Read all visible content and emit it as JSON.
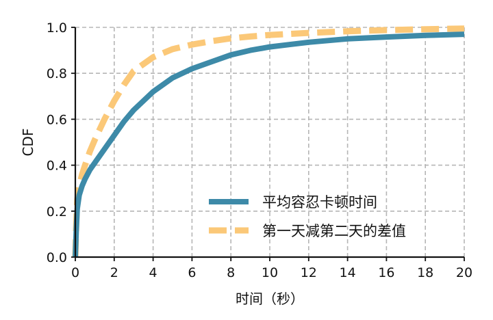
{
  "chart_data": {
    "type": "line",
    "xlabel": "时间（秒）",
    "ylabel": "CDF",
    "xlim": [
      0,
      20
    ],
    "ylim": [
      0,
      1.0
    ],
    "xticks": [
      0,
      2,
      4,
      6,
      8,
      10,
      12,
      14,
      16,
      18,
      20
    ],
    "xtick_labels": [
      "0",
      "2",
      "4",
      "6",
      "8",
      "10",
      "12",
      "14",
      "16",
      "18",
      "20"
    ],
    "yticks": [
      0,
      0.2,
      0.4,
      0.6,
      0.8,
      1.0
    ],
    "ytick_labels": [
      "0.0",
      "0.2",
      "0.4",
      "0.6",
      "0.8",
      "1.0"
    ],
    "grid": true,
    "legend_position": "lower-right",
    "series": [
      {
        "name": "平均容忍卡顿时间",
        "color": "#3d8aa8",
        "style": "solid",
        "x": [
          0.0,
          0.05,
          0.1,
          0.2,
          0.35,
          0.5,
          0.75,
          1.0,
          1.5,
          2.0,
          2.5,
          3.0,
          4.0,
          5.0,
          6.0,
          7.0,
          8.0,
          9.0,
          10.0,
          11.0,
          12.0,
          14.0,
          16.0,
          18.0,
          20.0
        ],
        "values": [
          0.0,
          0.12,
          0.21,
          0.27,
          0.31,
          0.34,
          0.38,
          0.41,
          0.47,
          0.53,
          0.59,
          0.64,
          0.72,
          0.78,
          0.82,
          0.85,
          0.88,
          0.9,
          0.915,
          0.925,
          0.935,
          0.95,
          0.958,
          0.965,
          0.97
        ]
      },
      {
        "name": "第一天减第二天的差值",
        "color": "#fbc878",
        "style": "dashed",
        "x": [
          0.0,
          0.05,
          0.1,
          0.2,
          0.35,
          0.5,
          0.75,
          1.0,
          1.5,
          2.0,
          2.5,
          3.0,
          4.0,
          5.0,
          6.0,
          7.0,
          8.0,
          9.0,
          10.0,
          12.0,
          14.0,
          16.0,
          18.0,
          20.0
        ],
        "values": [
          0.0,
          0.15,
          0.25,
          0.31,
          0.36,
          0.4,
          0.46,
          0.51,
          0.6,
          0.68,
          0.75,
          0.81,
          0.87,
          0.905,
          0.925,
          0.94,
          0.952,
          0.96,
          0.967,
          0.976,
          0.983,
          0.988,
          0.992,
          0.995
        ]
      }
    ]
  }
}
